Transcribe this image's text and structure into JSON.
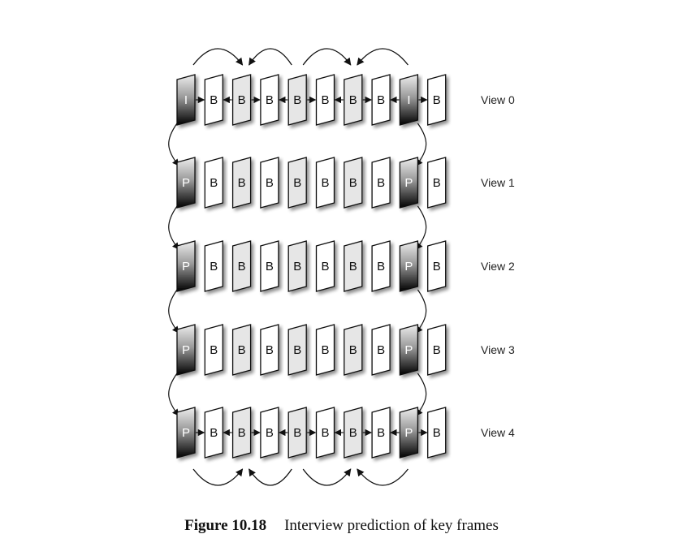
{
  "views": [
    {
      "label": "View 0",
      "frames": [
        "I",
        "B",
        "B",
        "B",
        "B",
        "B",
        "B",
        "B",
        "I",
        "B"
      ]
    },
    {
      "label": "View 1",
      "frames": [
        "P",
        "B",
        "B",
        "B",
        "B",
        "B",
        "B",
        "B",
        "P",
        "B"
      ]
    },
    {
      "label": "View 2",
      "frames": [
        "P",
        "B",
        "B",
        "B",
        "B",
        "B",
        "B",
        "B",
        "P",
        "B"
      ]
    },
    {
      "label": "View 3",
      "frames": [
        "P",
        "B",
        "B",
        "B",
        "B",
        "B",
        "B",
        "B",
        "P",
        "B"
      ]
    },
    {
      "label": "View 4",
      "frames": [
        "P",
        "B",
        "B",
        "B",
        "B",
        "B",
        "B",
        "B",
        "P",
        "B"
      ]
    }
  ],
  "caption": {
    "number": "Figure 10.18",
    "text": "Interview prediction of key frames"
  },
  "colors": {
    "key_frame_top": "#e8e8e8",
    "key_frame_bottom": "#000000",
    "b_frame": "#ffffff",
    "b_frame_shaded": "#e6e6e6",
    "stroke": "#111111"
  }
}
